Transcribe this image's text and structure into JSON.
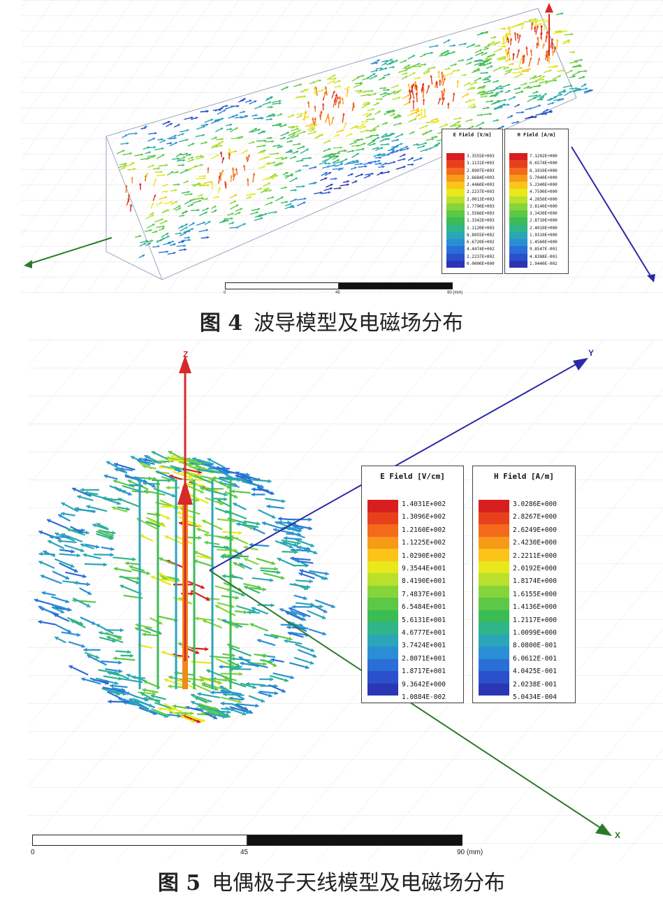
{
  "figure4": {
    "caption_number": "图 4",
    "caption_text": "波导模型及电磁场分布",
    "e_legend": {
      "title": "E Field [V/m]",
      "values": [
        "3.3555E+003",
        "3.1131E+003",
        "2.8907E+003",
        "2.6684E+003",
        "2.4460E+003",
        "2.2237E+003",
        "2.0013E+003",
        "1.7790E+003",
        "1.5566E+003",
        "1.3342E+003",
        "1.1120E+003",
        "8.8955E+002",
        "6.6720E+002",
        "4.4474E+002",
        "2.2237E+002",
        "0.0000E+000"
      ]
    },
    "h_legend": {
      "title": "H Field [A/m]",
      "values": [
        "7.1202E+000",
        "6.6574E+000",
        "6.1910E+000",
        "5.7040E+000",
        "5.2340E+000",
        "4.7590E+000",
        "4.2850E+000",
        "3.8140E+000",
        "3.3430E+000",
        "2.8710E+000",
        "2.4010E+000",
        "1.9310E+000",
        "1.4560E+000",
        "9.8547E-001",
        "4.8388E-001",
        "1.9440E-002"
      ]
    },
    "scale": {
      "ticks": [
        "0",
        "45",
        "90 (mm)"
      ]
    }
  },
  "figure5": {
    "caption_number": "图 5",
    "caption_text": "电偶极子天线模型及电磁场分布",
    "axes": {
      "z": "Z",
      "y": "Y",
      "x": "X"
    },
    "e_legend": {
      "title": "E Field [V/cm]",
      "values": [
        "1.4031E+002",
        "1.3096E+002",
        "1.2160E+002",
        "1.1225E+002",
        "1.0290E+002",
        "9.3544E+001",
        "8.4190E+001",
        "7.4837E+001",
        "6.5484E+001",
        "5.6131E+001",
        "4.6777E+001",
        "3.7424E+001",
        "2.8071E+001",
        "1.8717E+001",
        "9.3642E+000",
        "1.0884E-002"
      ]
    },
    "h_legend": {
      "title": "H Field [A/m]",
      "values": [
        "3.0286E+000",
        "2.8267E+000",
        "2.6249E+000",
        "2.4230E+000",
        "2.2211E+000",
        "2.0192E+000",
        "1.8174E+000",
        "1.6155E+000",
        "1.4136E+000",
        "1.2117E+000",
        "1.0099E+000",
        "8.0800E-001",
        "6.0612E-001",
        "4.0425E-001",
        "2.0238E-001",
        "5.0434E-004"
      ]
    },
    "scale": {
      "ticks": [
        "0",
        "45",
        "90 (mm)"
      ]
    }
  },
  "colors": {
    "ramp": [
      "#d71f1f",
      "#e8401c",
      "#f26a1a",
      "#f79a18",
      "#fcc318",
      "#e8e81c",
      "#b8e02c",
      "#86d43a",
      "#5cc846",
      "#3cbc56",
      "#30b48a",
      "#2aa6b8",
      "#2a8ed4",
      "#2a6ed8",
      "#2a50cc",
      "#2a36b4"
    ],
    "axis_z": "#d62a2a",
    "axis_y": "#2a2aa8",
    "axis_x": "#2a7a2a"
  }
}
